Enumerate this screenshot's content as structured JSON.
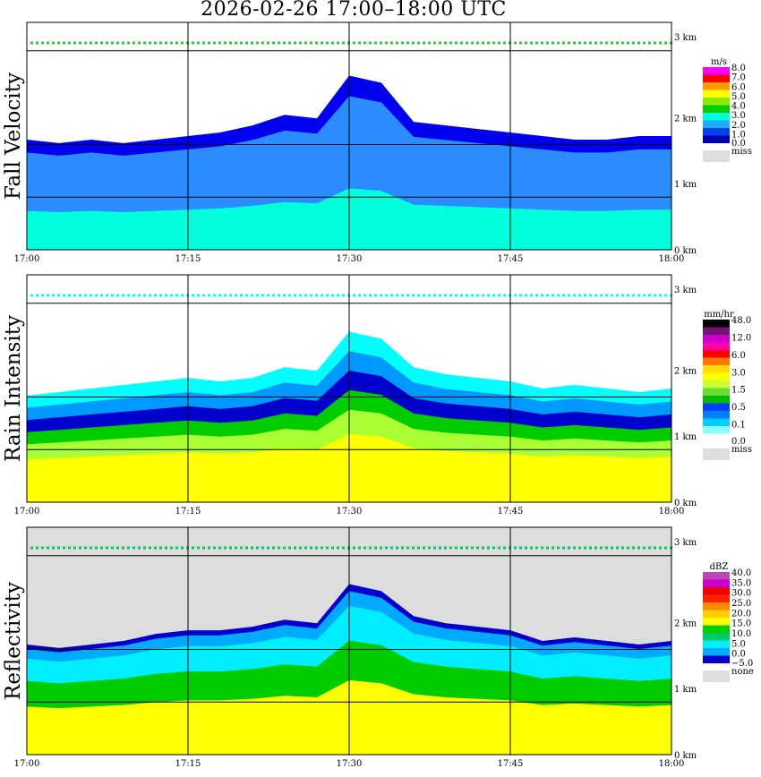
{
  "title": "2026-02-26  17:00–18:00 UTC",
  "chart_data": [
    {
      "type": "heatmap",
      "ylabel": "Fall Velocity",
      "x_ticks": [
        "17:00",
        "17:15",
        "17:30",
        "17:45",
        "18:00"
      ],
      "y_ticks": [
        "0 km",
        "1 km",
        "2 km",
        "3 km"
      ],
      "ylim_km": [
        0,
        3.2
      ],
      "xlim": [
        "17:00",
        "18:00"
      ],
      "grid": true,
      "background": "#ffffff",
      "echo_top_km": [
        1.55,
        1.5,
        1.55,
        1.5,
        1.55,
        1.6,
        1.65,
        1.75,
        1.9,
        1.85,
        2.45,
        2.35,
        1.8,
        1.75,
        1.7,
        1.65,
        1.6,
        1.55,
        1.55,
        1.6,
        1.6
      ],
      "colorbar": {
        "unit": "m/s",
        "labels": [
          "8.0",
          "7.0",
          "6.0",
          "5.0",
          "4.0",
          "3.0",
          "2.0",
          "1.0",
          "0.0",
          "miss"
        ],
        "colors": [
          "#ff00ff",
          "#ff0000",
          "#ff9900",
          "#ffff00",
          "#88ee00",
          "#00cc00",
          "#00ffdd",
          "#22aaff",
          "#0044ee",
          "#0000aa",
          "#dddddd"
        ]
      },
      "layers": [
        {
          "min_km": 0.0,
          "max_km": 0.6,
          "color": "#00ffdd"
        },
        {
          "min_km": 0.6,
          "max_km": 1.5,
          "color": "#2a8cff"
        },
        {
          "min_km": 1.5,
          "max_km": 1.7,
          "color": "#0000ee"
        }
      ]
    },
    {
      "type": "heatmap",
      "ylabel": "Rain Intensity",
      "x_ticks": [
        "17:00",
        "17:15",
        "17:30",
        "17:45",
        "18:00"
      ],
      "y_ticks": [
        "0 km",
        "1 km",
        "2 km",
        "3 km"
      ],
      "ylim_km": [
        0,
        3.2
      ],
      "xlim": [
        "17:00",
        "18:00"
      ],
      "grid": true,
      "background": "#ffffff",
      "echo_top_km": [
        1.5,
        1.55,
        1.6,
        1.65,
        1.7,
        1.75,
        1.7,
        1.75,
        1.9,
        1.85,
        2.4,
        2.3,
        1.9,
        1.8,
        1.75,
        1.7,
        1.6,
        1.65,
        1.6,
        1.55,
        1.6
      ],
      "colorbar": {
        "unit": "mm/hr",
        "labels": [
          "48.0",
          "12.0",
          "6.0",
          "3.0",
          "1.5",
          "0.5",
          "0.1",
          "0.0",
          "miss"
        ],
        "colors": [
          "#000000",
          "#771177",
          "#cc00cc",
          "#ff00aa",
          "#ff0000",
          "#ff7700",
          "#ffdd00",
          "#ffff00",
          "#ccff33",
          "#66dd33",
          "#00bb00",
          "#003dff",
          "#0080ff",
          "#00ccff",
          "#88ffff",
          "#ffffff",
          "#dddddd"
        ]
      },
      "layers": [
        {
          "min_km": 0.0,
          "max_km": 0.7,
          "color": "#ffff00"
        },
        {
          "min_km": 0.7,
          "max_km": 0.95,
          "color": "#aaff33"
        },
        {
          "min_km": 0.95,
          "max_km": 1.15,
          "color": "#00cc00"
        },
        {
          "min_km": 1.15,
          "max_km": 1.35,
          "color": "#0000cc"
        },
        {
          "min_km": 1.35,
          "max_km": 1.55,
          "color": "#0099ff"
        },
        {
          "min_km": 1.55,
          "max_km": 1.75,
          "color": "#00ffff"
        }
      ]
    },
    {
      "type": "heatmap",
      "ylabel": "Reflectivity",
      "x_ticks": [
        "17:00",
        "17:15",
        "17:30",
        "17:45",
        "18:00"
      ],
      "y_ticks": [
        "0 km",
        "1 km",
        "2 km",
        "3 km"
      ],
      "ylim_km": [
        0,
        3.2
      ],
      "xlim": [
        "17:00",
        "18:00"
      ],
      "grid": true,
      "background": "#dddddd",
      "echo_top_km": [
        1.55,
        1.5,
        1.55,
        1.6,
        1.7,
        1.75,
        1.75,
        1.8,
        1.9,
        1.85,
        2.4,
        2.3,
        1.95,
        1.85,
        1.8,
        1.75,
        1.6,
        1.65,
        1.6,
        1.55,
        1.6
      ],
      "colorbar": {
        "unit": "dBZ",
        "labels": [
          "40.0",
          "35.0",
          "30.0",
          "25.0",
          "20.0",
          "15.0",
          "10.0",
          "5.0",
          "0.0",
          "−5.0",
          "none"
        ],
        "colors": [
          "#bb44bb",
          "#cc00cc",
          "#ee0000",
          "#ff2200",
          "#ff8800",
          "#ffcc00",
          "#ffff00",
          "#00cc00",
          "#00cc66",
          "#00eeff",
          "#00aaff",
          "#0000cc",
          "#dddddd"
        ]
      },
      "layers": [
        {
          "min_km": 0.0,
          "max_km": 0.75,
          "color": "#ffff00"
        },
        {
          "min_km": 0.75,
          "max_km": 1.15,
          "color": "#00cc00"
        },
        {
          "min_km": 1.15,
          "max_km": 1.5,
          "color": "#00eeff"
        },
        {
          "min_km": 1.5,
          "max_km": 1.65,
          "color": "#00aaff"
        },
        {
          "min_km": 1.65,
          "max_km": 1.72,
          "color": "#0000cc"
        }
      ]
    }
  ]
}
